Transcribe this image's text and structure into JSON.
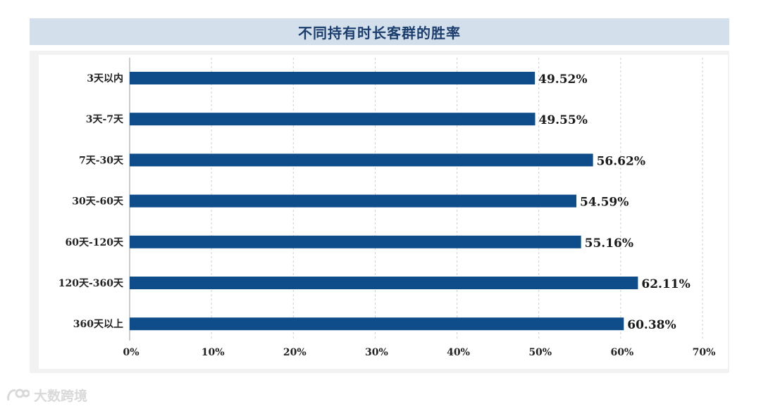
{
  "chart_data": {
    "type": "bar",
    "orientation": "horizontal",
    "title": "不同持有时长客群的胜率",
    "categories": [
      "3天以内",
      "3天-7天",
      "7天-30天",
      "30天-60天",
      "60天-120天",
      "120天-360天",
      "360天以上"
    ],
    "values": [
      49.52,
      49.55,
      56.62,
      54.59,
      55.16,
      62.11,
      60.38
    ],
    "value_labels": [
      "49.52%",
      "49.55%",
      "56.62%",
      "54.59%",
      "55.16%",
      "62.11%",
      "60.38%"
    ],
    "xlim": [
      0,
      70
    ],
    "x_ticks": [
      "0%",
      "10%",
      "20%",
      "30%",
      "40%",
      "50%",
      "60%",
      "70%"
    ],
    "xlabel": "",
    "ylabel": "",
    "grid": true,
    "bar_color": "#0f4c8a"
  },
  "watermark": {
    "text": "大数跨境",
    "icon": "dashuju-logo-icon"
  }
}
